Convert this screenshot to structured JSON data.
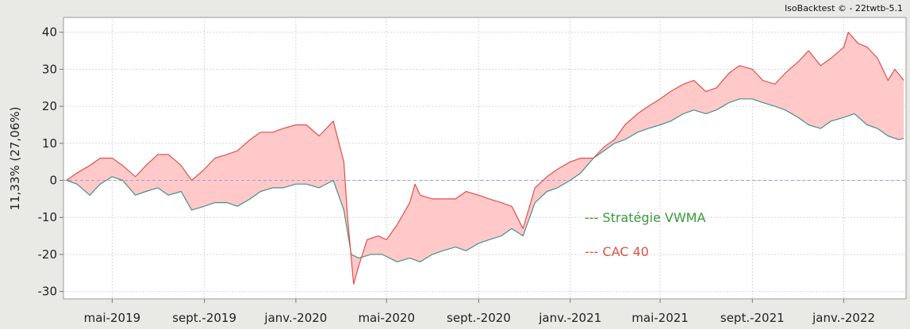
{
  "watermark": "IsoBacktest © - 22twtb-5.1",
  "colors": {
    "background": "#e9eae6",
    "plot_bg": "#ffffff",
    "fill_between": "#ffc9c9",
    "strategy": "#4a8f86",
    "cac40": "#e0504a",
    "zero_line": "#9da0d8",
    "grid": "#d4d6d9"
  },
  "chart_data": {
    "type": "line",
    "title": "",
    "ylabel": "11,33% (27,06%)",
    "xlabel": "",
    "ylim": [
      -32,
      44
    ],
    "yticks": [
      -30,
      -20,
      -10,
      0,
      10,
      20,
      30,
      40
    ],
    "xlim": [
      "2019-02-25",
      "2022-03-25"
    ],
    "xticks": [
      {
        "date": "2019-05-01",
        "label": "mai-2019"
      },
      {
        "date": "2019-09-01",
        "label": "sept.-2019"
      },
      {
        "date": "2020-01-01",
        "label": "janv.-2020"
      },
      {
        "date": "2020-05-01",
        "label": "mai-2020"
      },
      {
        "date": "2020-09-01",
        "label": "sept.-2020"
      },
      {
        "date": "2021-01-01",
        "label": "janv.-2021"
      },
      {
        "date": "2021-05-01",
        "label": "mai-2021"
      },
      {
        "date": "2021-09-01",
        "label": "sept.-2021"
      },
      {
        "date": "2022-01-01",
        "label": "janv.-2022"
      }
    ],
    "grid": true,
    "legend_position": "center-right",
    "fill_between_series": true,
    "series": [
      {
        "name": "Stratégie VWMA",
        "color": "#4a8f86",
        "points": [
          [
            "2019-03-01",
            0
          ],
          [
            "2019-03-15",
            -1
          ],
          [
            "2019-04-01",
            -4
          ],
          [
            "2019-04-15",
            -1
          ],
          [
            "2019-05-01",
            1
          ],
          [
            "2019-05-15",
            0
          ],
          [
            "2019-06-01",
            -4
          ],
          [
            "2019-06-15",
            -3
          ],
          [
            "2019-07-01",
            -2
          ],
          [
            "2019-07-15",
            -4
          ],
          [
            "2019-08-01",
            -3
          ],
          [
            "2019-08-15",
            -8
          ],
          [
            "2019-09-01",
            -7
          ],
          [
            "2019-09-15",
            -6
          ],
          [
            "2019-10-01",
            -6
          ],
          [
            "2019-10-15",
            -7
          ],
          [
            "2019-11-01",
            -5
          ],
          [
            "2019-11-15",
            -3
          ],
          [
            "2019-12-01",
            -2
          ],
          [
            "2019-12-15",
            -2
          ],
          [
            "2020-01-01",
            -1
          ],
          [
            "2020-01-15",
            -1
          ],
          [
            "2020-02-01",
            -2
          ],
          [
            "2020-02-20",
            0
          ],
          [
            "2020-03-05",
            -8
          ],
          [
            "2020-03-15",
            -20
          ],
          [
            "2020-03-25",
            -21
          ],
          [
            "2020-04-10",
            -20
          ],
          [
            "2020-04-25",
            -20
          ],
          [
            "2020-05-15",
            -22
          ],
          [
            "2020-06-01",
            -21
          ],
          [
            "2020-06-15",
            -22
          ],
          [
            "2020-07-01",
            -20
          ],
          [
            "2020-07-15",
            -19
          ],
          [
            "2020-08-01",
            -18
          ],
          [
            "2020-08-15",
            -19
          ],
          [
            "2020-09-01",
            -17
          ],
          [
            "2020-09-15",
            -16
          ],
          [
            "2020-10-01",
            -15
          ],
          [
            "2020-10-15",
            -13
          ],
          [
            "2020-10-30",
            -15
          ],
          [
            "2020-11-15",
            -6
          ],
          [
            "2020-12-01",
            -3
          ],
          [
            "2020-12-15",
            -2
          ],
          [
            "2021-01-01",
            0
          ],
          [
            "2021-01-15",
            2
          ],
          [
            "2021-02-01",
            6
          ],
          [
            "2021-02-15",
            8
          ],
          [
            "2021-03-01",
            10
          ],
          [
            "2021-03-15",
            11
          ],
          [
            "2021-04-01",
            13
          ],
          [
            "2021-04-15",
            14
          ],
          [
            "2021-05-01",
            15
          ],
          [
            "2021-05-15",
            16
          ],
          [
            "2021-06-01",
            18
          ],
          [
            "2021-06-15",
            19
          ],
          [
            "2021-07-01",
            18
          ],
          [
            "2021-07-15",
            19
          ],
          [
            "2021-08-01",
            21
          ],
          [
            "2021-08-15",
            22
          ],
          [
            "2021-09-01",
            22
          ],
          [
            "2021-09-15",
            21
          ],
          [
            "2021-10-01",
            20
          ],
          [
            "2021-10-15",
            19
          ],
          [
            "2021-11-01",
            17
          ],
          [
            "2021-11-15",
            15
          ],
          [
            "2021-12-01",
            14
          ],
          [
            "2021-12-15",
            16
          ],
          [
            "2022-01-01",
            17
          ],
          [
            "2022-01-15",
            18
          ],
          [
            "2022-02-01",
            15
          ],
          [
            "2022-02-15",
            14
          ],
          [
            "2022-03-01",
            12
          ],
          [
            "2022-03-15",
            11
          ],
          [
            "2022-03-22",
            11.3
          ]
        ]
      },
      {
        "name": "CAC 40",
        "color": "#e0504a",
        "points": [
          [
            "2019-03-01",
            0
          ],
          [
            "2019-03-15",
            2
          ],
          [
            "2019-04-01",
            4
          ],
          [
            "2019-04-15",
            6
          ],
          [
            "2019-05-01",
            6
          ],
          [
            "2019-05-15",
            4
          ],
          [
            "2019-06-01",
            1
          ],
          [
            "2019-06-15",
            4
          ],
          [
            "2019-07-01",
            7
          ],
          [
            "2019-07-15",
            7
          ],
          [
            "2019-08-01",
            4
          ],
          [
            "2019-08-15",
            0
          ],
          [
            "2019-09-01",
            3
          ],
          [
            "2019-09-15",
            6
          ],
          [
            "2019-10-01",
            7
          ],
          [
            "2019-10-15",
            8
          ],
          [
            "2019-11-01",
            11
          ],
          [
            "2019-11-15",
            13
          ],
          [
            "2019-12-01",
            13
          ],
          [
            "2019-12-15",
            14
          ],
          [
            "2020-01-01",
            15
          ],
          [
            "2020-01-15",
            15
          ],
          [
            "2020-02-01",
            12
          ],
          [
            "2020-02-20",
            16
          ],
          [
            "2020-03-05",
            5
          ],
          [
            "2020-03-10",
            -10
          ],
          [
            "2020-03-18",
            -28
          ],
          [
            "2020-03-25",
            -23
          ],
          [
            "2020-04-05",
            -16
          ],
          [
            "2020-04-20",
            -15
          ],
          [
            "2020-05-01",
            -16
          ],
          [
            "2020-05-15",
            -12
          ],
          [
            "2020-06-01",
            -6
          ],
          [
            "2020-06-08",
            -1
          ],
          [
            "2020-06-15",
            -4
          ],
          [
            "2020-07-01",
            -5
          ],
          [
            "2020-07-15",
            -5
          ],
          [
            "2020-08-01",
            -5
          ],
          [
            "2020-08-15",
            -3
          ],
          [
            "2020-09-01",
            -4
          ],
          [
            "2020-09-15",
            -5
          ],
          [
            "2020-10-01",
            -6
          ],
          [
            "2020-10-15",
            -7
          ],
          [
            "2020-10-30",
            -13
          ],
          [
            "2020-11-15",
            -2
          ],
          [
            "2020-12-01",
            1
          ],
          [
            "2020-12-15",
            3
          ],
          [
            "2021-01-01",
            5
          ],
          [
            "2021-01-15",
            6
          ],
          [
            "2021-02-01",
            6
          ],
          [
            "2021-02-15",
            9
          ],
          [
            "2021-03-01",
            11
          ],
          [
            "2021-03-15",
            15
          ],
          [
            "2021-04-01",
            18
          ],
          [
            "2021-04-15",
            20
          ],
          [
            "2021-05-01",
            22
          ],
          [
            "2021-05-15",
            24
          ],
          [
            "2021-06-01",
            26
          ],
          [
            "2021-06-15",
            27
          ],
          [
            "2021-07-01",
            24
          ],
          [
            "2021-07-15",
            25
          ],
          [
            "2021-08-01",
            29
          ],
          [
            "2021-08-15",
            31
          ],
          [
            "2021-09-01",
            30
          ],
          [
            "2021-09-15",
            27
          ],
          [
            "2021-10-01",
            26
          ],
          [
            "2021-10-15",
            29
          ],
          [
            "2021-11-01",
            32
          ],
          [
            "2021-11-15",
            35
          ],
          [
            "2021-12-01",
            31
          ],
          [
            "2021-12-15",
            33
          ],
          [
            "2022-01-01",
            36
          ],
          [
            "2022-01-07",
            40
          ],
          [
            "2022-01-20",
            37
          ],
          [
            "2022-02-01",
            36
          ],
          [
            "2022-02-15",
            33
          ],
          [
            "2022-03-01",
            27
          ],
          [
            "2022-03-10",
            30
          ],
          [
            "2022-03-22",
            27
          ]
        ]
      }
    ]
  }
}
